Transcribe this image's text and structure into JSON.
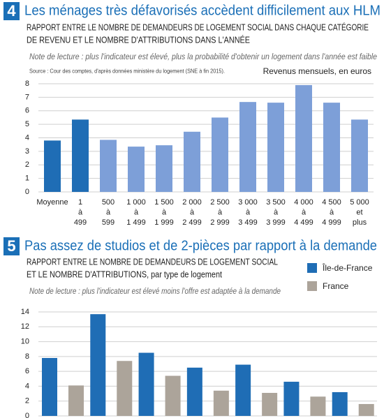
{
  "chart_data": [
    {
      "type": "bar",
      "number": "4",
      "title": "Les ménages très défavorisés accèdent difficilement aux HLM",
      "subtitle": [
        "RAPPORT ENTRE LE NOMBRE DE DEMANDEURS DE LOGEMENT SOCIAL DANS CHAQUE CATÉGORIE",
        "DE REVENU ET LE NOMBRE D'ATTRIBUTIONS DANS L'ANNÉE"
      ],
      "note": "Note de lecture : plus l'indicateur est élevé, plus la probabilité d'obtenir un logement dans l'année est faible",
      "source": "Source : Cour des comptes, d'après données ministère du logement (SNE à fin 2015).",
      "x_label": "Revenus mensuels, en euros",
      "categories": [
        [
          "Moyenne"
        ],
        [
          "1",
          "à",
          "499"
        ],
        [
          "500",
          "à",
          "599"
        ],
        [
          "1 000",
          "à",
          "1 499"
        ],
        [
          "1 500",
          "à",
          "1 999"
        ],
        [
          "2 000",
          "à",
          "2 499"
        ],
        [
          "2 500",
          "à",
          "2 999"
        ],
        [
          "3 000",
          "à",
          "3 499"
        ],
        [
          "3 500",
          "à",
          "3 999"
        ],
        [
          "4 000",
          "à",
          "4 499"
        ],
        [
          "4 500",
          "à",
          "4 999"
        ],
        [
          "5 000",
          "et",
          "plus"
        ]
      ],
      "values": [
        3.8,
        5.35,
        3.85,
        3.35,
        3.45,
        4.45,
        5.5,
        6.65,
        6.6,
        7.9,
        6.6,
        5.35
      ],
      "colors": [
        "#1f6db5",
        "#1f6db5",
        "#7d9fd8",
        "#7d9fd8",
        "#7d9fd8",
        "#7d9fd8",
        "#7d9fd8",
        "#7d9fd8",
        "#7d9fd8",
        "#7d9fd8",
        "#7d9fd8",
        "#7d9fd8"
      ],
      "ylim": [
        0,
        8
      ],
      "yticks": [
        0,
        1,
        2,
        3,
        4,
        5,
        6,
        7,
        8
      ],
      "grid": true
    },
    {
      "type": "grouped_bar",
      "number": "5",
      "title": "Pas assez de studios et de 2-pièces par rapport à la demande",
      "subtitle": [
        "RAPPORT ENTRE LE NOMBRE DE DEMANDEURS DE LOGEMENT SOCIAL",
        "ET LE NOMBRE D'ATTRIBUTIONS, par type de logement"
      ],
      "note": "Note de lecture : plus l'indicateur est élevé moins l'offre est adaptée à la demande",
      "categories": [
        null,
        null,
        null,
        null,
        null,
        null,
        null
      ],
      "series": [
        {
          "name": "Île-de-France",
          "color": "#1f6db5",
          "values": [
            7.8,
            13.7,
            8.5,
            6.5,
            6.9,
            4.6,
            3.2
          ]
        },
        {
          "name": "France",
          "color": "#aca49a",
          "values": [
            4.1,
            7.4,
            5.4,
            3.4,
            3.1,
            2.6,
            1.6
          ]
        }
      ],
      "ylim": [
        0,
        14
      ],
      "yticks": [
        0,
        2,
        4,
        6,
        8,
        10,
        12,
        14
      ],
      "grid": true
    }
  ]
}
